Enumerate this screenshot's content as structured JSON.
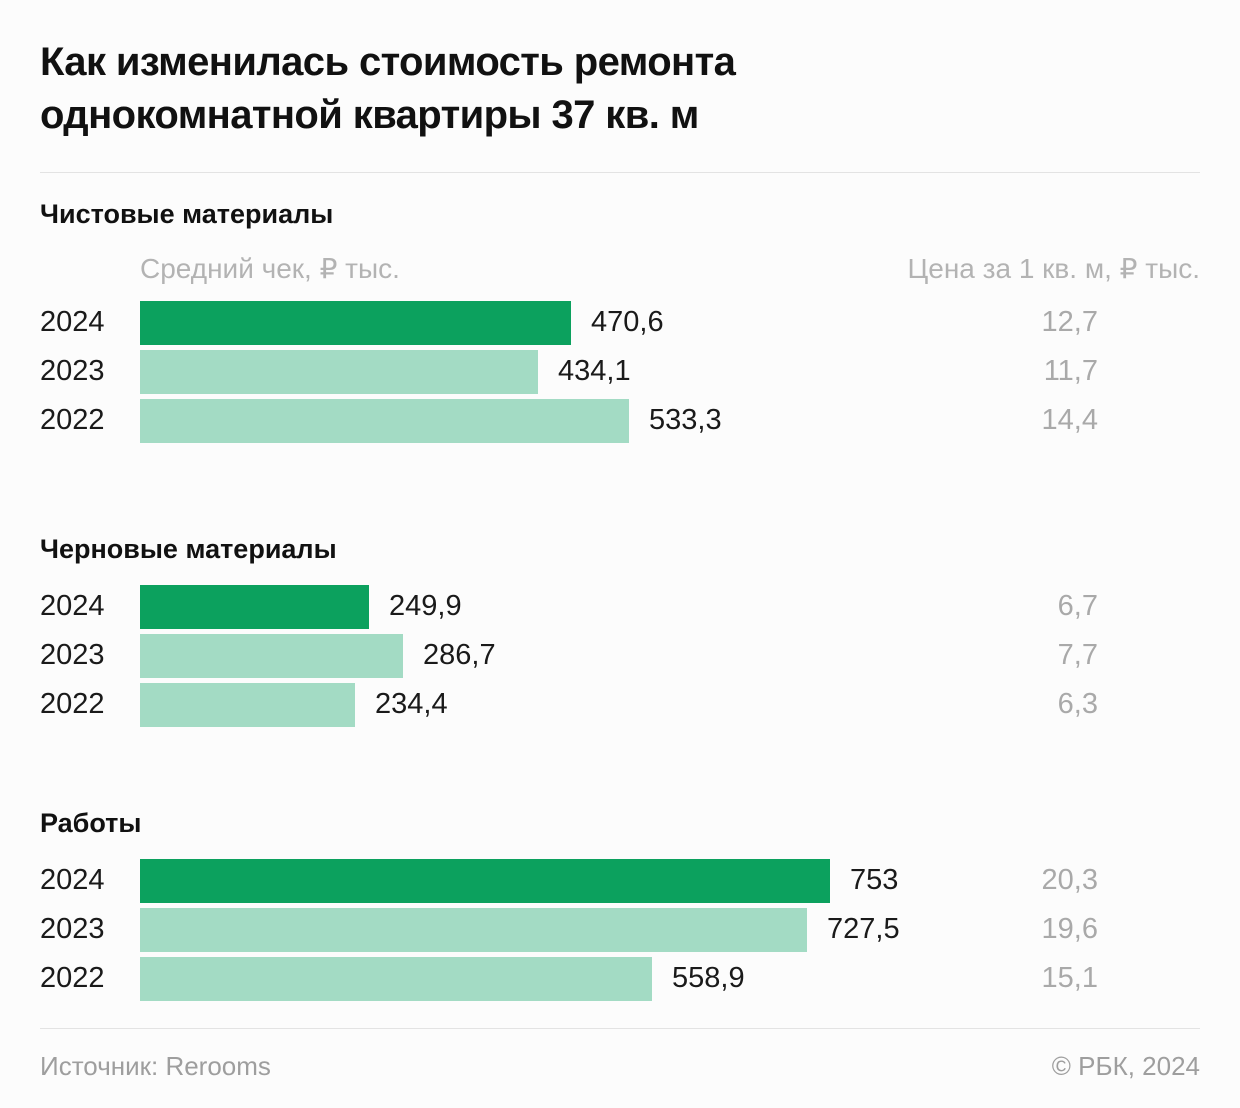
{
  "page": {
    "title_lines": [
      "Как изменилась стоимость ремонта",
      "однокомнатной квартиры 37 кв. м"
    ],
    "footer": {
      "source": "Источник: Rerooms",
      "copyright": "© РБК, 2024"
    }
  },
  "columns": {
    "left": "Средний чек, ₽ тыс.",
    "right": "Цена за 1 кв. м, ₽ тыс."
  },
  "colors": {
    "bar_primary": "#0ca15e",
    "bar_secondary": "#a3dbc4",
    "text": "#141414",
    "muted": "#b3b3b3",
    "price": "#a9a9a9",
    "background": "#fcfcfc",
    "divider": "#e3e3e3"
  },
  "chart_data": [
    {
      "type": "bar",
      "orientation": "horizontal",
      "title": "Чистовые материалы",
      "categories": [
        "2024",
        "2023",
        "2022"
      ],
      "series": [
        {
          "name": "Средний чек, ₽ тыс.",
          "values": [
            470.6,
            434.1,
            533.3
          ]
        },
        {
          "name": "Цена за 1 кв. м, ₽ тыс.",
          "values": [
            12.7,
            11.7,
            14.4
          ]
        }
      ],
      "highlight_category": "2024",
      "xlim": [
        0,
        753
      ],
      "rows": [
        {
          "year": "2024",
          "value": 470.6,
          "value_label": "470,6",
          "price_label": "12,7"
        },
        {
          "year": "2023",
          "value": 434.1,
          "value_label": "434,1",
          "price_label": "11,7"
        },
        {
          "year": "2022",
          "value": 533.3,
          "value_label": "533,3",
          "price_label": "14,4"
        }
      ]
    },
    {
      "type": "bar",
      "orientation": "horizontal",
      "title": "Черновые материалы",
      "categories": [
        "2024",
        "2023",
        "2022"
      ],
      "series": [
        {
          "name": "Средний чек, ₽ тыс.",
          "values": [
            249.9,
            286.7,
            234.4
          ]
        },
        {
          "name": "Цена за 1 кв. м, ₽ тыс.",
          "values": [
            6.7,
            7.7,
            6.3
          ]
        }
      ],
      "highlight_category": "2024",
      "xlim": [
        0,
        753
      ],
      "rows": [
        {
          "year": "2024",
          "value": 249.9,
          "value_label": "249,9",
          "price_label": "6,7"
        },
        {
          "year": "2023",
          "value": 286.7,
          "value_label": "286,7",
          "price_label": "7,7"
        },
        {
          "year": "2022",
          "value": 234.4,
          "value_label": "234,4",
          "price_label": "6,3"
        }
      ]
    },
    {
      "type": "bar",
      "orientation": "horizontal",
      "title": "Работы",
      "categories": [
        "2024",
        "2023",
        "2022"
      ],
      "series": [
        {
          "name": "Средний чек, ₽ тыс.",
          "values": [
            753,
            727.5,
            558.9
          ]
        },
        {
          "name": "Цена за 1 кв. м, ₽ тыс.",
          "values": [
            20.3,
            19.6,
            15.1
          ]
        }
      ],
      "highlight_category": "2024",
      "xlim": [
        0,
        753
      ],
      "rows": [
        {
          "year": "2024",
          "value": 753,
          "value_label": "753",
          "price_label": "20,3"
        },
        {
          "year": "2023",
          "value": 727.5,
          "value_label": "727,5",
          "price_label": "19,6"
        },
        {
          "year": "2022",
          "value": 558.9,
          "value_label": "558,9",
          "price_label": "15,1"
        }
      ]
    }
  ]
}
